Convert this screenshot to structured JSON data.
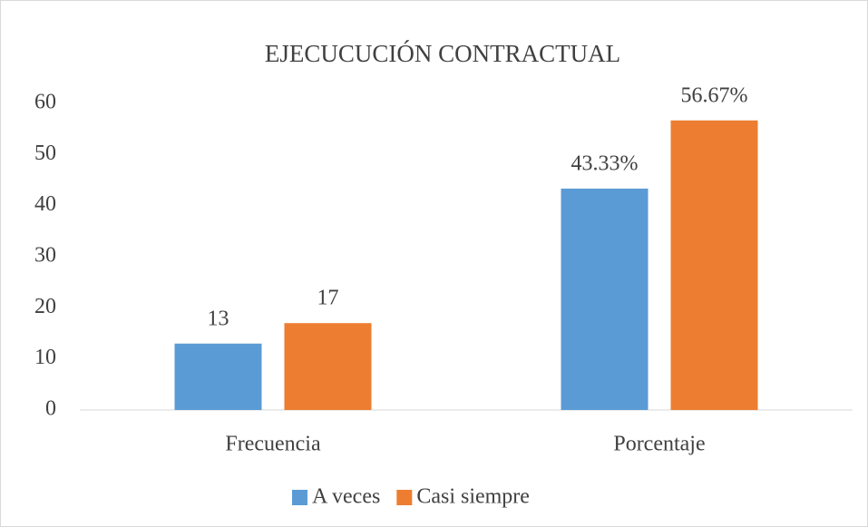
{
  "chart_data": {
    "type": "bar",
    "title": "EJECUCUCIÓN CONTRACTUAL",
    "categories": [
      "Frecuencia",
      "Porcentaje"
    ],
    "series": [
      {
        "name": "A veces",
        "color": "#5b9bd5",
        "values": [
          13,
          43.33
        ],
        "value_labels": [
          "13",
          "43.33%"
        ]
      },
      {
        "name": "Casi siempre",
        "color": "#ed7d31",
        "values": [
          17,
          56.67
        ],
        "value_labels": [
          "17",
          "56.67%"
        ]
      }
    ],
    "ylim": [
      0,
      60
    ],
    "yticks": [
      0,
      10,
      20,
      30,
      40,
      50,
      60
    ],
    "grid": false,
    "legend": "bottom"
  }
}
